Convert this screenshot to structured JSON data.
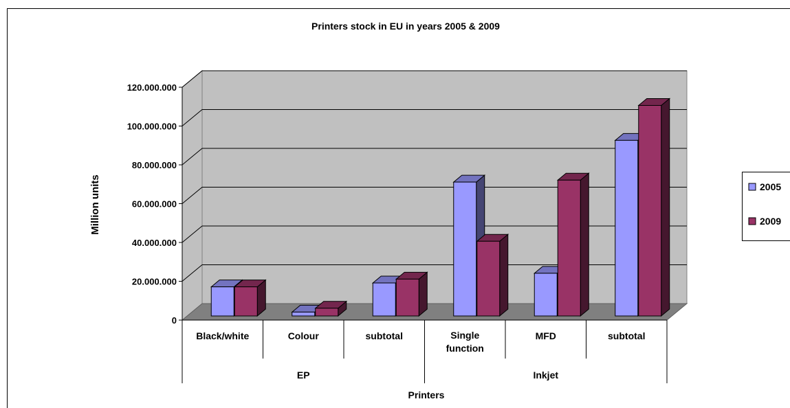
{
  "chart_data": {
    "type": "bar",
    "title": "Printers stock in EU in years 2005 & 2009",
    "xlabel": "Printers",
    "ylabel": "Million units",
    "ylim": [
      0,
      120000000
    ],
    "y_ticks": [
      0,
      20000000,
      40000000,
      60000000,
      80000000,
      100000000,
      120000000
    ],
    "y_tick_labels": [
      "0",
      "20.000.000",
      "40.000.000",
      "60.000.000",
      "80.000.000",
      "100.000.000",
      "120.000.000"
    ],
    "categories": [
      "Black/white",
      "Colour",
      "subtotal",
      "Single function",
      "MFD",
      "subtotal"
    ],
    "groups": [
      {
        "label": "EP",
        "span": [
          0,
          2
        ]
      },
      {
        "label": "Inkjet",
        "span": [
          3,
          5
        ]
      }
    ],
    "series": [
      {
        "name": "2005",
        "color": "#9999ff",
        "values": [
          15000000,
          2000000,
          17000000,
          69000000,
          22000000,
          90500000
        ]
      },
      {
        "name": "2009",
        "color": "#993366",
        "values": [
          15000000,
          4000000,
          19000000,
          38500000,
          70000000,
          108500000
        ]
      }
    ],
    "grid": true,
    "legend_position": "right"
  }
}
